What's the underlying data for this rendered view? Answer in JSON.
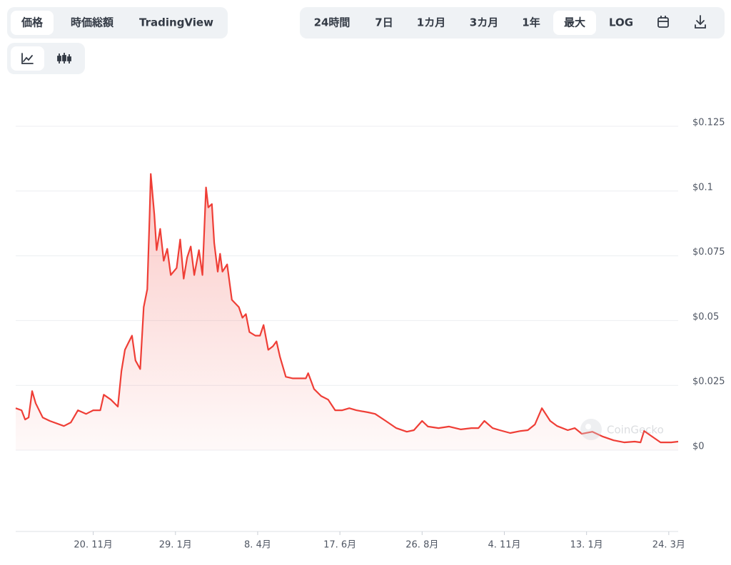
{
  "tabs": {
    "left": [
      "価格",
      "時価総額",
      "TradingView"
    ],
    "range": [
      "24時間",
      "7日",
      "1カ月",
      "3カ月",
      "1年",
      "最大",
      "LOG"
    ]
  },
  "watermark": "CoinGecko",
  "chart_data": {
    "type": "line",
    "color": "#ef3e36",
    "grid": true,
    "x": [
      0,
      5,
      8,
      11,
      14,
      17,
      23,
      29,
      41,
      47,
      53,
      60,
      66,
      72,
      75,
      81,
      87,
      90,
      93,
      96,
      99,
      102,
      106,
      109,
      112,
      114,
      115,
      118,
      120,
      123,
      126,
      129,
      132,
      137,
      140,
      143,
      146,
      149,
      152,
      156,
      159,
      162,
      164,
      167,
      169,
      172,
      174,
      176,
      180,
      184,
      187,
      190,
      193,
      196,
      199,
      204,
      208,
      211,
      215,
      219,
      222,
      225,
      230,
      236,
      242,
      247,
      249,
      254,
      260,
      266,
      272,
      278,
      284,
      290,
      300,
      306,
      315,
      324,
      333,
      339,
      346,
      351,
      360,
      369,
      379,
      388,
      394,
      399,
      406,
      412,
      421,
      430,
      436,
      442,
      448,
      455,
      461,
      470,
      476,
      482,
      491,
      500,
      509,
      518,
      527,
      532,
      535,
      540,
      549,
      558,
      564
    ],
    "values": [
      0.0162,
      0.0154,
      0.0118,
      0.0126,
      0.0228,
      0.0181,
      0.0126,
      0.0113,
      0.0093,
      0.0107,
      0.0154,
      0.014,
      0.0154,
      0.0154,
      0.0214,
      0.0195,
      0.0168,
      0.0305,
      0.0387,
      0.0415,
      0.0442,
      0.0346,
      0.0313,
      0.0552,
      0.0621,
      0.0909,
      0.1066,
      0.0909,
      0.0772,
      0.0854,
      0.0731,
      0.0777,
      0.0676,
      0.0703,
      0.0813,
      0.0662,
      0.0744,
      0.0786,
      0.0676,
      0.0772,
      0.0676,
      0.1014,
      0.0937,
      0.095,
      0.0799,
      0.0689,
      0.0758,
      0.0689,
      0.0717,
      0.058,
      0.0566,
      0.0552,
      0.0511,
      0.0525,
      0.0456,
      0.0442,
      0.0442,
      0.0483,
      0.0387,
      0.0401,
      0.042,
      0.036,
      0.0283,
      0.0277,
      0.0277,
      0.0277,
      0.0297,
      0.0236,
      0.0209,
      0.0195,
      0.0154,
      0.0154,
      0.0162,
      0.0154,
      0.0146,
      0.014,
      0.0113,
      0.0085,
      0.0071,
      0.0077,
      0.0113,
      0.0091,
      0.0085,
      0.0091,
      0.008,
      0.0085,
      0.0085,
      0.0113,
      0.0085,
      0.0077,
      0.0066,
      0.0074,
      0.0077,
      0.0099,
      0.0162,
      0.0113,
      0.0093,
      0.0077,
      0.0085,
      0.0063,
      0.0071,
      0.0052,
      0.0038,
      0.003,
      0.0033,
      0.003,
      0.0074,
      0.0058,
      0.003,
      0.003,
      0.0033
    ],
    "xlim": [
      0,
      564
    ],
    "xticks": [
      {
        "value": 66,
        "label": "20. 11月"
      },
      {
        "value": 136,
        "label": "29. 1月"
      },
      {
        "value": 206,
        "label": "8. 4月"
      },
      {
        "value": 276,
        "label": "17. 6月"
      },
      {
        "value": 346,
        "label": "26. 8月"
      },
      {
        "value": 416,
        "label": "4. 11月"
      },
      {
        "value": 486,
        "label": "13. 1月"
      },
      {
        "value": 556,
        "label": "24. 3月"
      }
    ],
    "ylim": [
      0,
      0.125
    ],
    "yticks": [
      {
        "value": 0,
        "label": "$0"
      },
      {
        "value": 0.025,
        "label": "$0.025"
      },
      {
        "value": 0.05,
        "label": "$0.05"
      },
      {
        "value": 0.075,
        "label": "$0.075"
      },
      {
        "value": 0.1,
        "label": "$0.1"
      },
      {
        "value": 0.125,
        "label": "$0.125"
      }
    ]
  }
}
